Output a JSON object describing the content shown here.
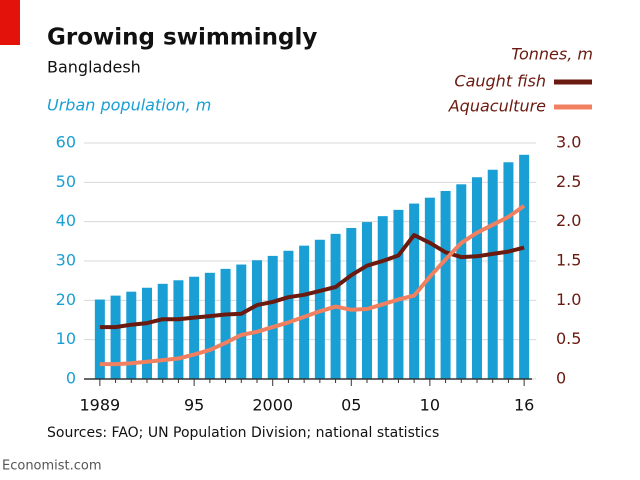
{
  "chart_data": {
    "type": "bar",
    "title": "Growing swimmingly",
    "subtitle": "Bangladesh",
    "ylabel": "Urban population, m",
    "y2label": "Tonnes, m",
    "source": "Sources: FAO; UN Population Division; national statistics",
    "footer": "Economist.com",
    "categories": [
      "1989",
      null,
      null,
      null,
      null,
      null,
      "95",
      null,
      null,
      null,
      null,
      "2000",
      null,
      null,
      null,
      null,
      "05",
      null,
      null,
      null,
      null,
      "10",
      null,
      null,
      null,
      null,
      null,
      "16"
    ],
    "series": [
      {
        "name": "Urban population, m",
        "type": "bar",
        "color": "#1a9fd4",
        "axis": "y",
        "values": [
          20.2,
          21.2,
          22.2,
          23.2,
          24.2,
          25.1,
          26.0,
          27.0,
          28.0,
          29.1,
          30.2,
          31.3,
          32.6,
          33.9,
          35.4,
          36.9,
          38.4,
          39.9,
          41.4,
          43.0,
          44.6,
          46.1,
          47.8,
          49.5,
          51.3,
          53.2,
          55.1,
          57.0
        ]
      },
      {
        "name": "Caught fish",
        "type": "line",
        "color": "#6b1a10",
        "axis": "y2",
        "values": [
          0.66,
          0.66,
          0.69,
          0.71,
          0.76,
          0.76,
          0.78,
          0.8,
          0.82,
          0.83,
          0.94,
          0.98,
          1.04,
          1.07,
          1.12,
          1.17,
          1.32,
          1.44,
          1.5,
          1.57,
          1.83,
          1.73,
          1.61,
          1.55,
          1.56,
          1.59,
          1.62,
          1.67
        ]
      },
      {
        "name": "Aquaculture",
        "type": "line",
        "color": "#f08060",
        "axis": "y2",
        "values": [
          0.19,
          0.19,
          0.2,
          0.22,
          0.24,
          0.26,
          0.31,
          0.37,
          0.46,
          0.56,
          0.6,
          0.66,
          0.72,
          0.79,
          0.86,
          0.92,
          0.88,
          0.89,
          0.95,
          1.01,
          1.06,
          1.3,
          1.52,
          1.73,
          1.86,
          1.96,
          2.06,
          2.2
        ]
      }
    ],
    "ylim": [
      0,
      60
    ],
    "yticks": [
      0,
      10,
      20,
      30,
      40,
      50,
      60
    ],
    "y2lim": [
      0,
      3.0
    ],
    "y2ticks": [
      0,
      {
        "value": 0.5,
        "label": "0.5"
      },
      {
        "value": 1.0,
        "label": "1.0"
      },
      {
        "value": 1.5,
        "label": "1.5"
      },
      {
        "value": 2.0,
        "label": "2.0"
      },
      {
        "value": 2.5,
        "label": "2.5"
      },
      {
        "value": 3.0,
        "label": "3.0"
      }
    ],
    "grid": true
  }
}
